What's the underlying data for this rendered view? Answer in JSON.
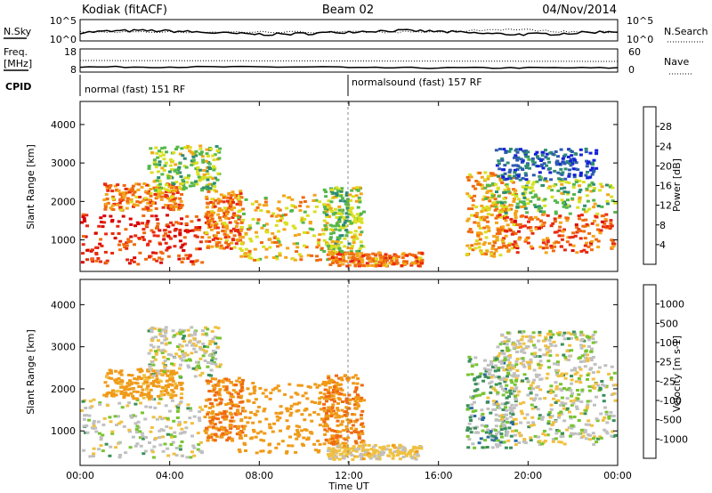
{
  "header": {
    "title_left": "Kodiak (fitACF)",
    "title_center": "Beam 02",
    "title_right": "04/Nov/2014"
  },
  "aux_panel": {
    "left_label": "N.Sky",
    "left_ticks": [
      "10^5",
      "10^0"
    ],
    "right_label": "N.Search",
    "right_ticks": [
      "10^5",
      "10^0"
    ]
  },
  "freq_panel": {
    "left_label_1": "Freq.",
    "left_label_2": "[MHz]",
    "left_ticks": [
      "18",
      "8"
    ],
    "right_label": "Nave",
    "right_ticks": [
      "60",
      "0"
    ]
  },
  "cpid_panel": {
    "label": "CPID",
    "mode_1": "normal (fast) 151 RF",
    "mode_2": "normalsound (fast) 157 RF"
  },
  "colors": {
    "power_scale": [
      "#1420d8",
      "#2e5cb0",
      "#2d8d72",
      "#55b84a",
      "#d8e020",
      "#f4a418",
      "#f06a10",
      "#e82a10",
      "#d80000"
    ],
    "velocity_scale": [
      "#1a3cc8",
      "#2a6aa0",
      "#3a8f5a",
      "#78c430",
      "#c0c0c0",
      "#f0c040",
      "#f09a18",
      "#f06a10",
      "#e02010"
    ]
  },
  "chart_data": [
    {
      "type": "heatmap",
      "title": "",
      "xlabel": "Time UT",
      "ylabel": "Slant Range [km]",
      "xlim": [
        0,
        24
      ],
      "ylim": [
        180,
        4600
      ],
      "x_ticks": [
        "00:00",
        "04:00",
        "08:00",
        "12:00",
        "16:00",
        "20:00",
        "00:00"
      ],
      "y_ticks": [
        "1000",
        "2000",
        "3000",
        "4000"
      ],
      "colorbar": {
        "label": "Power [dB]",
        "range": [
          0,
          32
        ],
        "ticks": [
          "4",
          "8",
          "12",
          "16",
          "20",
          "24",
          "28"
        ]
      },
      "regions": [
        {
          "t": [
            0.0,
            5.4
          ],
          "r": [
            400,
            1700
          ],
          "value": 27
        },
        {
          "t": [
            1.0,
            4.5
          ],
          "r": [
            1800,
            2500
          ],
          "value": 22
        },
        {
          "t": [
            3.0,
            6.2
          ],
          "r": [
            2300,
            3500
          ],
          "value": 14
        },
        {
          "t": [
            5.5,
            7.2
          ],
          "r": [
            800,
            2300
          ],
          "value": 22
        },
        {
          "t": [
            7.0,
            11.5
          ],
          "r": [
            500,
            2200
          ],
          "value": 18
        },
        {
          "t": [
            10.8,
            12.6
          ],
          "r": [
            700,
            2400
          ],
          "value": 14
        },
        {
          "t": [
            11.0,
            15.2
          ],
          "r": [
            350,
            700
          ],
          "value": 22
        },
        {
          "t": [
            17.2,
            19.4
          ],
          "r": [
            600,
            2800
          ],
          "value": 20
        },
        {
          "t": [
            18.5,
            24.0
          ],
          "r": [
            700,
            1700
          ],
          "value": 24
        },
        {
          "t": [
            18.0,
            24.0
          ],
          "r": [
            1700,
            2600
          ],
          "value": 14
        },
        {
          "t": [
            18.5,
            23.0
          ],
          "r": [
            2600,
            3400
          ],
          "value": 6
        }
      ]
    },
    {
      "type": "heatmap",
      "title": "",
      "xlabel": "Time UT",
      "ylabel": "Slant Range [km]",
      "xlim": [
        0,
        24
      ],
      "ylim": [
        180,
        4600
      ],
      "x_ticks": [
        "00:00",
        "04:00",
        "08:00",
        "12:00",
        "16:00",
        "20:00",
        "00:00"
      ],
      "y_ticks": [
        "1000",
        "2000",
        "3000",
        "4000"
      ],
      "colorbar": {
        "label": "Velocity [m s-1]",
        "ticks": [
          "1000",
          "500",
          "100",
          "25",
          "-25",
          "-100",
          "-500",
          "-1000"
        ]
      },
      "regions": [
        {
          "t": [
            0.0,
            5.4
          ],
          "r": [
            400,
            1800
          ],
          "value": 0
        },
        {
          "t": [
            1.0,
            4.5
          ],
          "r": [
            1800,
            2500
          ],
          "value": -150
        },
        {
          "t": [
            3.0,
            6.2
          ],
          "r": [
            2300,
            3500
          ],
          "value": 0
        },
        {
          "t": [
            5.5,
            7.2
          ],
          "r": [
            800,
            2300
          ],
          "value": -300
        },
        {
          "t": [
            7.0,
            11.5
          ],
          "r": [
            500,
            2200
          ],
          "value": -200
        },
        {
          "t": [
            10.8,
            12.6
          ],
          "r": [
            700,
            2400
          ],
          "value": -300
        },
        {
          "t": [
            11.0,
            15.2
          ],
          "r": [
            350,
            700
          ],
          "value": -50
        },
        {
          "t": [
            17.2,
            19.4
          ],
          "r": [
            600,
            2800
          ],
          "value": 50
        },
        {
          "t": [
            18.5,
            24.0
          ],
          "r": [
            700,
            1700
          ],
          "value": 0
        },
        {
          "t": [
            18.0,
            24.0
          ],
          "r": [
            1700,
            2600
          ],
          "value": 0
        },
        {
          "t": [
            18.5,
            23.0
          ],
          "r": [
            2600,
            3400
          ],
          "value": 0
        }
      ]
    }
  ]
}
